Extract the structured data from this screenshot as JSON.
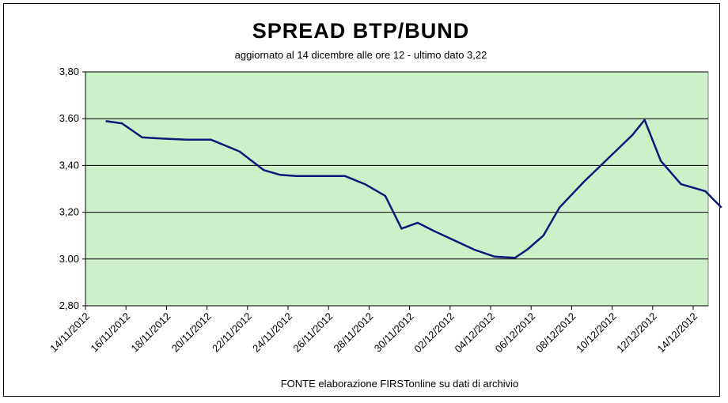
{
  "chart_data": {
    "type": "line",
    "title": "SPREAD  BTP/BUND",
    "subtitle": "aggiornato al 14  dicembre alle ore 12 - ultimo dato 3,22",
    "source": "FONTE elaborazione FIRSTonline su dati di archivio",
    "ylim": [
      2.8,
      3.8
    ],
    "yticks": [
      {
        "value": 3.8,
        "label": "3,80"
      },
      {
        "value": 3.6,
        "label": "3.60"
      },
      {
        "value": 3.4,
        "label": "3,40"
      },
      {
        "value": 3.2,
        "label": "3,20"
      },
      {
        "value": 3.0,
        "label": "3.00"
      },
      {
        "value": 2.8,
        "label": "2,80"
      }
    ],
    "xticks": [
      "14/11/2012",
      "16/11/2012",
      "18/11/2012",
      "20/11/2012",
      "22/11/2012",
      "24/11/2012",
      "26/11/2012",
      "28/11/2012",
      "30/11/2012",
      "02/12/2012",
      "04/12/2012",
      "06/12/2012",
      "08/12/2012",
      "10/12/2012",
      "12/12/2012",
      "14/12/2012"
    ],
    "grid": true,
    "series": [
      {
        "name": "",
        "color": "#0a1a7a",
        "x": [
          0.5,
          0.9,
          1.4,
          1.9,
          2.5,
          3.1,
          3.8,
          4.4,
          4.8,
          5.2,
          5.7,
          6.4,
          6.9,
          7.4,
          7.8,
          8.2,
          8.6,
          9.1,
          9.6,
          10.1,
          10.6,
          10.9,
          11.3,
          11.7,
          12.3,
          12.9,
          13.5,
          13.8,
          14.2,
          14.7,
          15.3,
          15.7
        ],
        "values": [
          3.59,
          3.58,
          3.52,
          3.515,
          3.51,
          3.51,
          3.46,
          3.38,
          3.36,
          3.355,
          3.355,
          3.355,
          3.32,
          3.27,
          3.13,
          3.155,
          3.12,
          3.08,
          3.04,
          3.01,
          3.005,
          3.04,
          3.1,
          3.22,
          3.33,
          3.43,
          3.53,
          3.595,
          3.42,
          3.32,
          3.29,
          3.22
        ]
      }
    ],
    "background": "#ccf0c8"
  }
}
